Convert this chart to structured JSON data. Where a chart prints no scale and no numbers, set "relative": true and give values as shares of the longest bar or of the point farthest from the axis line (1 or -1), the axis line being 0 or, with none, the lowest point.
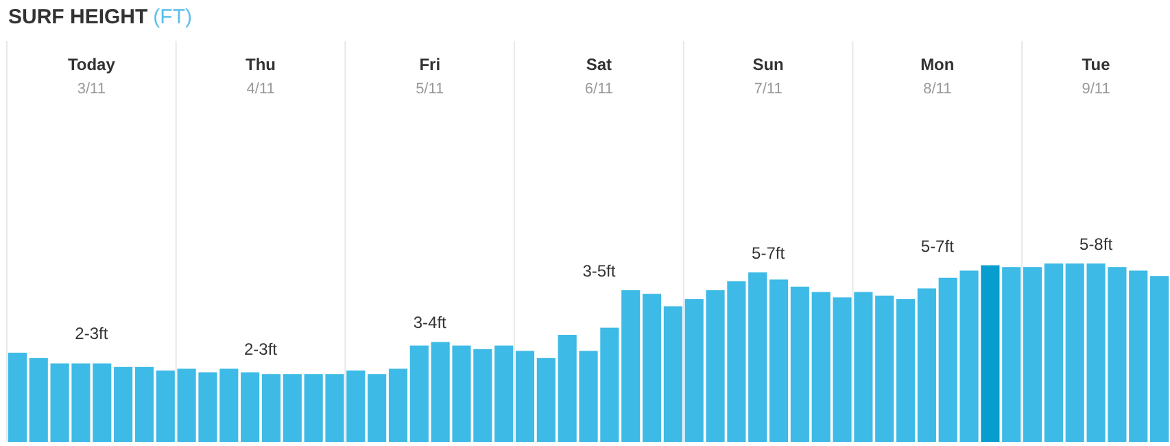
{
  "chart_data": {
    "type": "bar",
    "relative": true,
    "title": "SURF HEIGHT",
    "subtitle": "(FT)",
    "categories": [
      null,
      null,
      null,
      null,
      null,
      null,
      null,
      null,
      null,
      null,
      null,
      null,
      null,
      null,
      null,
      null,
      null,
      null,
      null,
      null,
      null,
      null,
      null,
      null,
      null,
      null,
      null,
      null,
      null,
      null,
      null,
      null,
      null,
      null,
      null,
      null,
      null,
      null,
      null,
      null,
      null,
      null,
      null,
      null,
      null,
      null,
      null,
      null,
      null,
      null,
      null,
      null,
      null,
      null,
      null
    ],
    "values": [
      0.5,
      0.47,
      0.44,
      0.44,
      0.44,
      0.42,
      0.42,
      0.4,
      0.41,
      0.39,
      0.41,
      0.39,
      0.38,
      0.38,
      0.38,
      0.38,
      0.4,
      0.38,
      0.41,
      0.54,
      0.56,
      0.54,
      0.52,
      0.54,
      0.51,
      0.47,
      0.6,
      0.51,
      0.64,
      0.85,
      0.83,
      0.76,
      0.8,
      0.85,
      0.9,
      0.95,
      0.91,
      0.87,
      0.84,
      0.81,
      0.84,
      0.82,
      0.8,
      0.86,
      0.92,
      0.96,
      0.99,
      0.98,
      0.98,
      1,
      1,
      1,
      0.98,
      0.96,
      0.93
    ],
    "colors": [
      "#3dbae6",
      "#3dbae6",
      "#3dbae6",
      "#3dbae6",
      "#3dbae6",
      "#3dbae6",
      "#3dbae6",
      "#3dbae6",
      "#3dbae6",
      "#3dbae6",
      "#3dbae6",
      "#3dbae6",
      "#3dbae6",
      "#3dbae6",
      "#3dbae6",
      "#3dbae6",
      "#3dbae6",
      "#3dbae6",
      "#3dbae6",
      "#3dbae6",
      "#3dbae6",
      "#3dbae6",
      "#3dbae6",
      "#3dbae6",
      "#3dbae6",
      "#3dbae6",
      "#3dbae6",
      "#3dbae6",
      "#3dbae6",
      "#3dbae6",
      "#3dbae6",
      "#3dbae6",
      "#3dbae6",
      "#3dbae6",
      "#3dbae6",
      "#3dbae6",
      "#3dbae6",
      "#3dbae6",
      "#3dbae6",
      "#3dbae6",
      "#3dbae6",
      "#3dbae6",
      "#3dbae6",
      "#3dbae6",
      "#3dbae6",
      "#3dbae6",
      "#079dcf",
      "#3dbae6",
      "#3dbae6",
      "#3dbae6",
      "#3dbae6",
      "#3dbae6",
      "#3dbae6",
      "#3dbae6",
      "#3dbae6"
    ],
    "annotations": [
      "Today",
      "3/11",
      "2-3ft",
      "Thu",
      "4/11",
      "2-3ft",
      "Fri",
      "5/11",
      "3-4ft",
      "Sat",
      "6/11",
      "3-5ft",
      "Sun",
      "7/11",
      "5-7ft",
      "Mon",
      "8/11",
      "5-7ft",
      "Tue",
      "9/11",
      "5-8ft"
    ],
    "grid": false
  }
}
